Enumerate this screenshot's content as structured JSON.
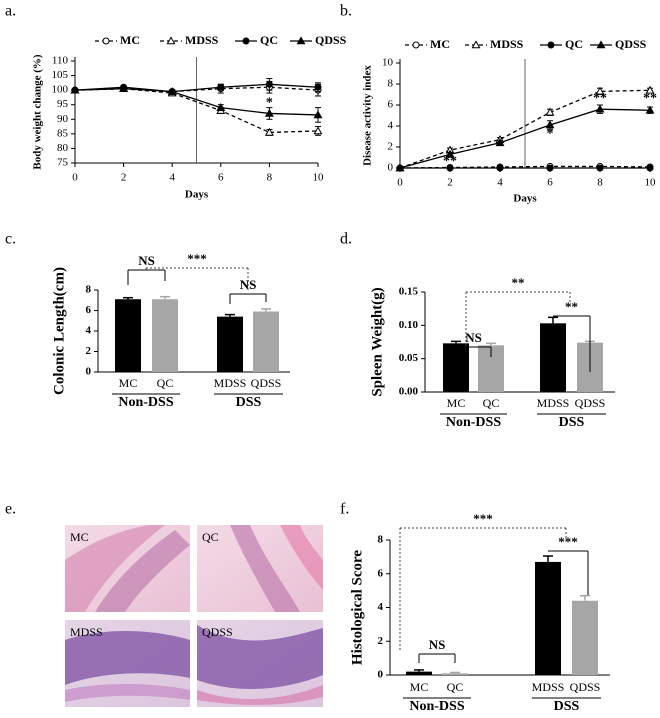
{
  "chart_data": [
    {
      "type": "line",
      "panel_label": "a.",
      "ylabel": "Body weight change (%)",
      "xlabel": "Days",
      "x": [
        0,
        2,
        4,
        6,
        8,
        10
      ],
      "xlim": [
        0,
        10
      ],
      "xticks": [
        0,
        2,
        4,
        6,
        8,
        10
      ],
      "ylim": [
        75,
        110
      ],
      "yticks": [
        75,
        80,
        85,
        90,
        95,
        100,
        105,
        110
      ],
      "series": [
        {
          "name": "MC",
          "color": "#000000",
          "line": "dashed",
          "marker": "circle",
          "filled": false,
          "values": [
            100,
            100.5,
            99.5,
            100.5,
            101,
            100
          ],
          "errors": [
            0,
            0.5,
            0.5,
            1.5,
            2,
            2
          ]
        },
        {
          "name": "MDSS",
          "color": "#000000",
          "line": "dashed",
          "marker": "triangle",
          "filled": false,
          "values": [
            100,
            100.5,
            99,
            93,
            85.5,
            86
          ],
          "errors": [
            0,
            0.5,
            0.5,
            1,
            1,
            1.5
          ]
        },
        {
          "name": "QC",
          "color": "#000000",
          "line": "solid",
          "marker": "circle",
          "filled": true,
          "values": [
            100,
            101,
            99.5,
            101,
            102,
            101
          ],
          "errors": [
            0,
            0.5,
            0.5,
            1,
            2,
            1.5
          ]
        },
        {
          "name": "QDSS",
          "color": "#000000",
          "line": "solid",
          "marker": "triangle",
          "filled": true,
          "values": [
            100,
            100.5,
            99.5,
            94,
            92,
            91.5
          ],
          "errors": [
            0,
            0.5,
            0.5,
            1,
            2,
            2.5
          ]
        }
      ],
      "annotations": [
        "*"
      ]
    },
    {
      "type": "line",
      "panel_label": "b.",
      "ylabel": "Disease activity index",
      "xlabel": "Days",
      "x": [
        0,
        2,
        4,
        6,
        8,
        10
      ],
      "xlim": [
        0,
        10
      ],
      "xticks": [
        0,
        2,
        4,
        6,
        8,
        10
      ],
      "ylim": [
        0,
        10
      ],
      "yticks": [
        0,
        2,
        4,
        6,
        8,
        10
      ],
      "series": [
        {
          "name": "MC",
          "color": "#000000",
          "line": "dashed",
          "marker": "circle",
          "filled": false,
          "values": [
            0,
            0.05,
            0.1,
            0.15,
            0.15,
            0.1
          ],
          "errors": [
            0,
            0.05,
            0.05,
            0.05,
            0.05,
            0.05
          ]
        },
        {
          "name": "MDSS",
          "color": "#000000",
          "line": "dashed",
          "marker": "triangle",
          "filled": false,
          "values": [
            0,
            1.7,
            2.7,
            5.3,
            7.3,
            7.4
          ],
          "errors": [
            0,
            0.2,
            0.2,
            0.3,
            0.3,
            0.2
          ]
        },
        {
          "name": "QC",
          "color": "#000000",
          "line": "solid",
          "marker": "circle",
          "filled": true,
          "values": [
            0,
            0,
            0,
            0,
            0,
            0
          ],
          "errors": [
            0,
            0,
            0,
            0,
            0,
            0
          ]
        },
        {
          "name": "QDSS",
          "color": "#000000",
          "line": "solid",
          "marker": "triangle",
          "filled": true,
          "values": [
            0,
            1.3,
            2.4,
            4.1,
            5.6,
            5.5
          ],
          "errors": [
            0,
            0.2,
            0.2,
            0.4,
            0.4,
            0.3
          ]
        }
      ],
      "annotations": [
        "**",
        "*",
        "**",
        "**"
      ]
    },
    {
      "type": "bar",
      "panel_label": "c.",
      "ylabel": "Colonic Length(cm)",
      "categories": [
        "MC",
        "QC",
        "MDSS",
        "QDSS"
      ],
      "groups": [
        "Non-DSS",
        "DSS"
      ],
      "values": [
        7.1,
        7.1,
        5.4,
        5.9
      ],
      "errors": [
        0.15,
        0.25,
        0.2,
        0.25
      ],
      "colors": [
        "#000000",
        "#a6a6a6",
        "#000000",
        "#a6a6a6"
      ],
      "ylim": [
        0,
        8
      ],
      "yticks": [
        0,
        2,
        4,
        6,
        8
      ],
      "annotations": [
        "NS",
        "NS",
        "***"
      ]
    },
    {
      "type": "bar",
      "panel_label": "d.",
      "ylabel": "Spleen Weight(g)",
      "categories": [
        "MC",
        "QC",
        "MDSS",
        "QDSS"
      ],
      "groups": [
        "Non-DSS",
        "DSS"
      ],
      "values": [
        0.073,
        0.07,
        0.103,
        0.074
      ],
      "errors": [
        0.003,
        0.003,
        0.009,
        0.002
      ],
      "colors": [
        "#000000",
        "#a6a6a6",
        "#000000",
        "#a6a6a6"
      ],
      "ylim": [
        0,
        0.15
      ],
      "yticks": [
        {
          "value": 0,
          "label": "0.00"
        },
        {
          "value": 0.05,
          "label": "0.05"
        },
        {
          "value": 0.1,
          "label": "0.10"
        },
        {
          "value": 0.15,
          "label": "0.15"
        }
      ],
      "annotations": [
        "NS",
        "**",
        "**"
      ]
    },
    {
      "type": "bar",
      "panel_label": "f.",
      "ylabel": "Histological Score",
      "categories": [
        "MC",
        "QC",
        "MDSS",
        "QDSS"
      ],
      "groups": [
        "Non-DSS",
        "DSS"
      ],
      "values": [
        0.2,
        0.1,
        6.7,
        4.4
      ],
      "errors": [
        0.1,
        0.05,
        0.35,
        0.3
      ],
      "colors": [
        "#000000",
        "#a6a6a6",
        "#000000",
        "#a6a6a6"
      ],
      "ylim": [
        0,
        8
      ],
      "yticks": [
        0,
        2,
        4,
        6,
        8
      ],
      "annotations": [
        "NS",
        "***",
        "***"
      ]
    }
  ],
  "image_panel": {
    "panel_label": "e.",
    "labels": [
      "MC",
      "QC",
      "MDSS",
      "QDSS"
    ]
  }
}
